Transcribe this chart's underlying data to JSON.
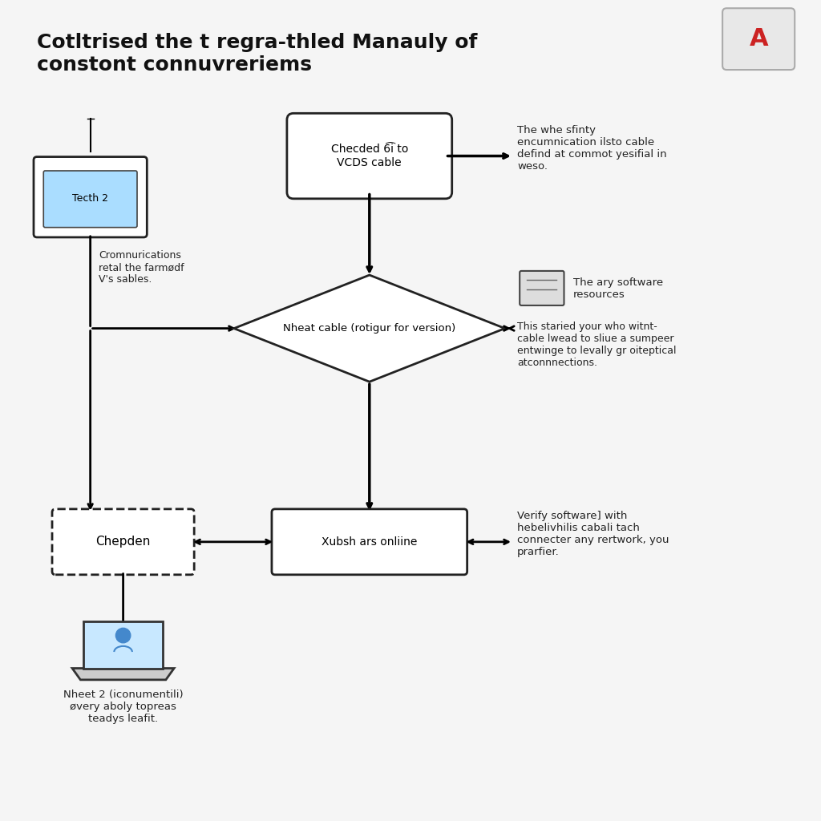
{
  "title_line1": "Cotltrised the t regra-thled Manauly of",
  "title_line2": "constont connuvreriems",
  "bg_color": "#dce8f5",
  "inner_bg": "#f5f5f5",
  "title_fontsize": 18,
  "nodes": {
    "tech2_label": "Tecth 2",
    "cable_check_label": "Checded 6͡i to\nVCDS cable",
    "diamond_label": "Nheat cable (rotigur for version)",
    "bottom_box_label": "Xubsh ars onliine",
    "dashed_box_label": "Chepden"
  },
  "annotations": {
    "tech2_note": "Cromnurications\nretal the farmødf\nV's sables.",
    "cable_note": "The whe sfinty\nencumnication ilsto cable\ndefind at commot yesifial in\nweso.",
    "diamond_right_title": "The ary software\nresources",
    "diamond_right_body": "This staried your who witnt-\ncable lwead to sliue a sumpeer\nentwinge to levally gr oiteptical\natconnnections.",
    "bottom_right_note": "Verify software] with\nhebelivhilis cabali tach\nconnecter any rertwork, you\nprarfier.",
    "laptop_note": "Nheet 2 (iconumentili)\nøvery aboly topreas\nteadys leafit."
  }
}
